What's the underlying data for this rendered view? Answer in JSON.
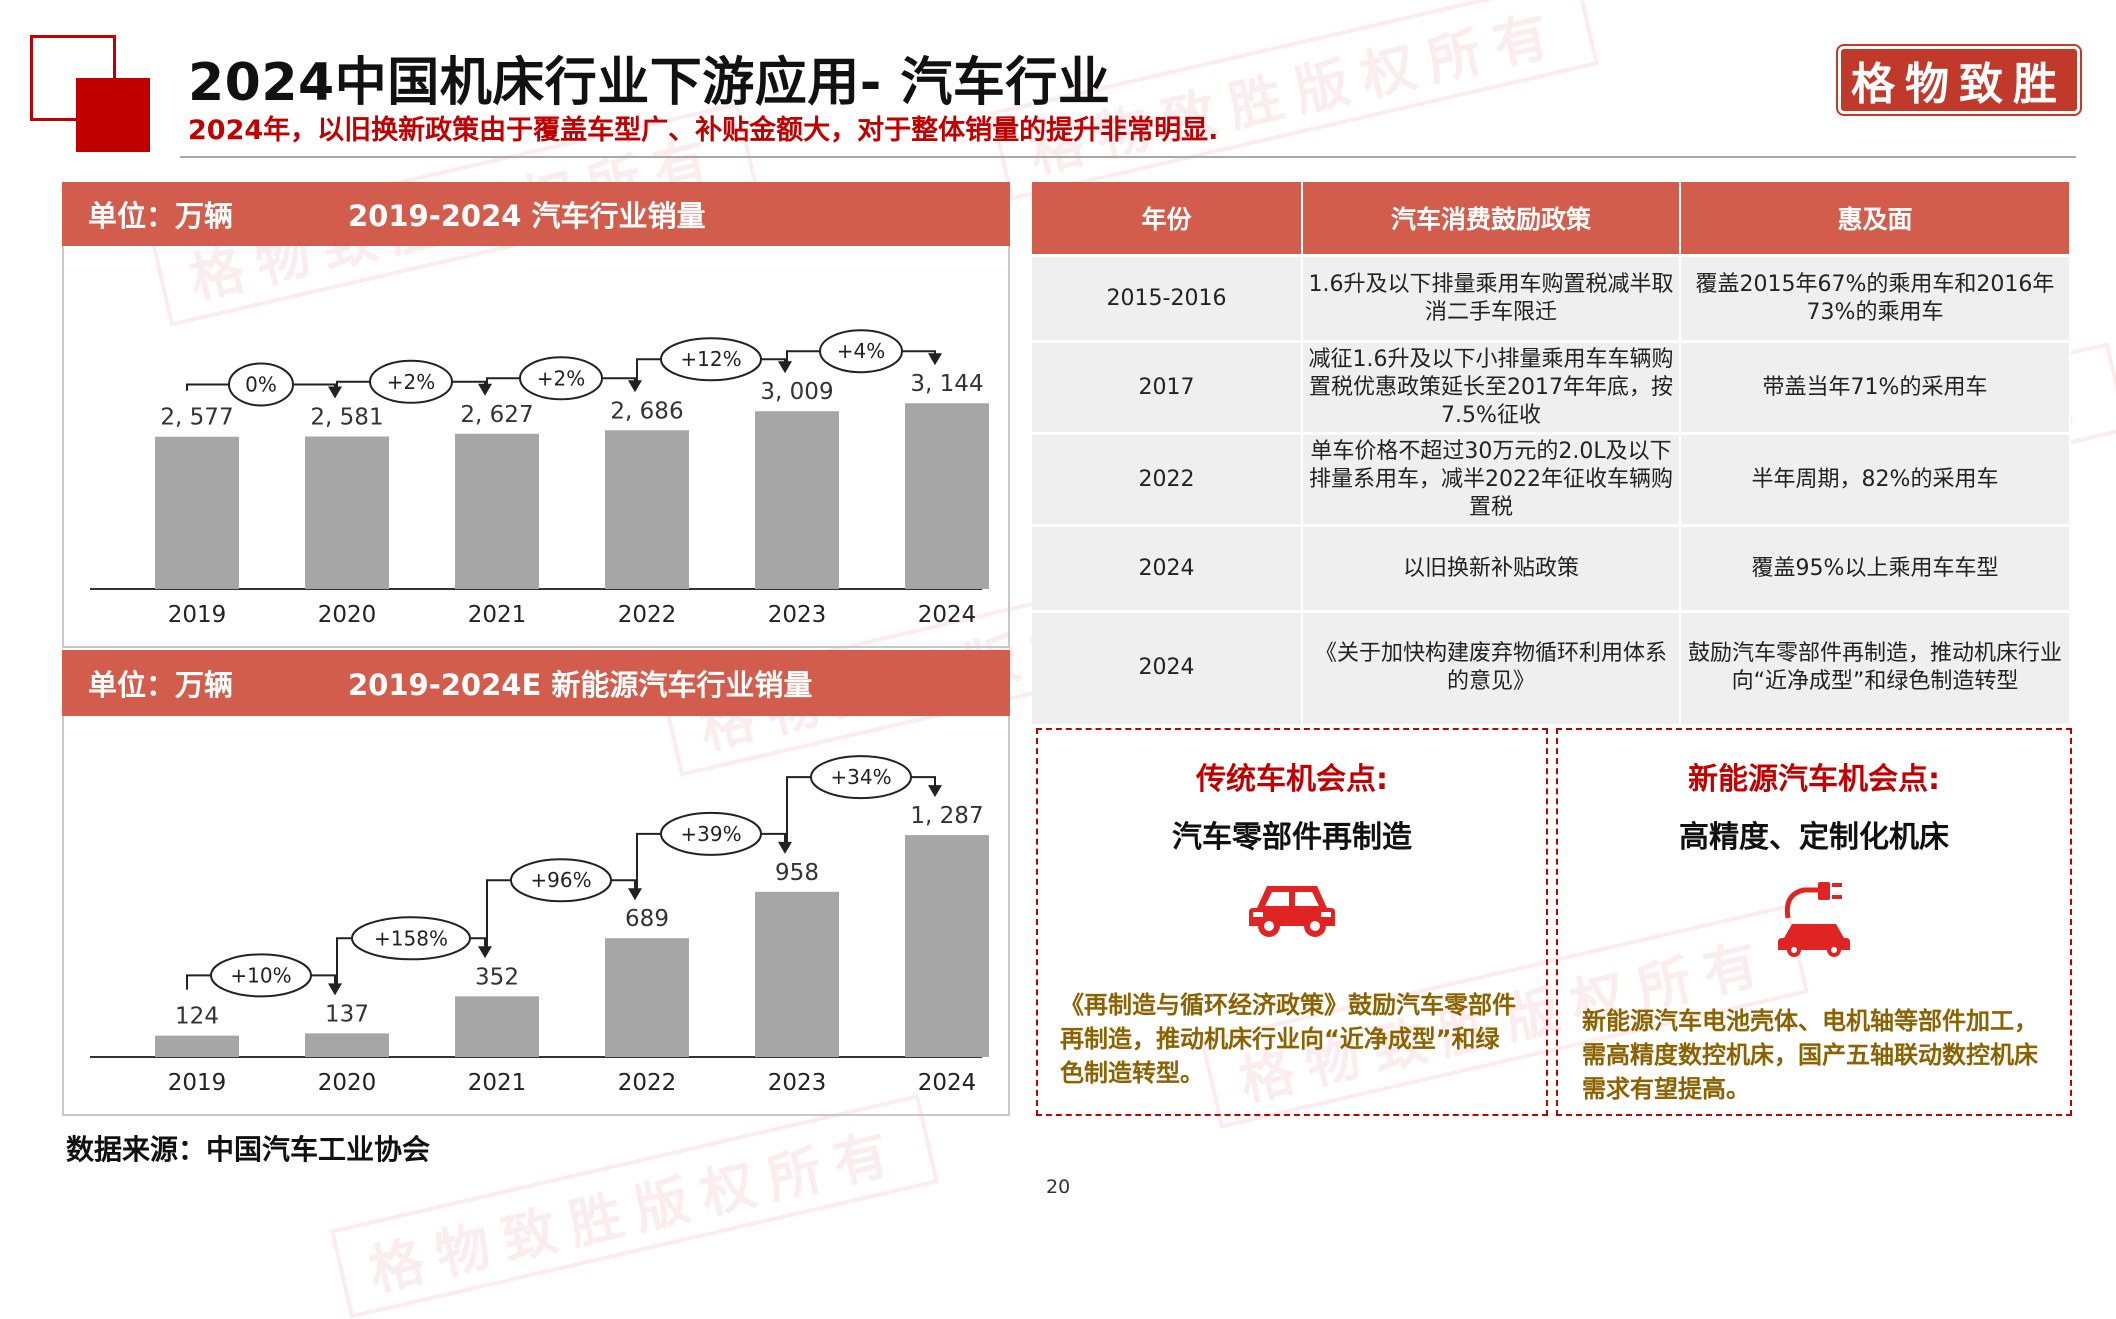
{
  "header": {
    "title": "2024中国机床行业下游应用- 汽车行业",
    "subtitle": "2024年，以旧换新政策由于覆盖车型广、补贴金额大，对于整体销量的提升非常明显.",
    "brand": "格物致胜"
  },
  "watermark": "格物致胜版权所有",
  "colors": {
    "accent": "#c00000",
    "header_bg": "#d35d4d",
    "bar": "#a6a6a6"
  },
  "chart1": {
    "unit": "单位：万辆",
    "title": "2019-2024   汽车行业销量"
  },
  "chart2": {
    "unit": "单位：万辆",
    "title": "2019-2024E  新能源汽车行业销量"
  },
  "chart_data": [
    {
      "type": "bar",
      "title": "2019-2024   汽车行业销量",
      "categories": [
        "2019",
        "2020",
        "2021",
        "2022",
        "2023",
        "2024"
      ],
      "values": [
        2577,
        2581,
        2627,
        2686,
        3009,
        3144
      ],
      "value_labels": [
        "2, 577",
        "2, 581",
        "2, 627",
        "2, 686",
        "3, 009",
        "3, 144"
      ],
      "growth_labels": [
        "0%",
        "+2%",
        "+2%",
        "+12%",
        "+4%"
      ],
      "unit": "万辆",
      "ylim": [
        0,
        3300
      ]
    },
    {
      "type": "bar",
      "title": "2019-2024E  新能源汽车行业销量",
      "categories": [
        "2019",
        "2020",
        "2021",
        "2022",
        "2023",
        "2024"
      ],
      "values": [
        124,
        137,
        352,
        689,
        958,
        1287
      ],
      "value_labels": [
        "124",
        "137",
        "352",
        "689",
        "958",
        "1, 287"
      ],
      "growth_labels": [
        "+10%",
        "+158%",
        "+96%",
        "+39%",
        "+34%"
      ],
      "unit": "万辆",
      "ylim": [
        0,
        1450
      ]
    }
  ],
  "table": {
    "headers": [
      "年份",
      "汽车消费鼓励政策",
      "惠及面"
    ],
    "rows": [
      [
        "2015-2016",
        "1.6升及以下排量乘用车购置税减半取消二手车限迁",
        "覆盖2015年67%的乘用车和2016年73%的乘用车"
      ],
      [
        "2017",
        "减征1.6升及以下小排量乘用车车辆购置税优惠政策延长至2017年年底，按7.5%征收",
        "带盖当年71%的采用车"
      ],
      [
        "2022",
        "单车价格不超过30万元的2.0L及以下排量系用车，减半2022年征收车辆购置税",
        "半年周期，82%的采用车"
      ],
      [
        "2024",
        "以旧换新补贴政策",
        "覆盖95%以上乘用车车型"
      ],
      [
        "2024",
        "《关于加快构建废弃物循环利用体系的意见》",
        "鼓励汽车零部件再制造，推动机床行业向“近净成型”和绿色制造转型"
      ]
    ]
  },
  "opportunities": [
    {
      "title": "传统车机会点:",
      "subtitle": "汽车零部件再制造",
      "icon": "car-icon",
      "desc": "《再制造与循环经济政策》鼓励汽车零部件再制造，推动机床行业向“近净成型”和绿色制造转型。"
    },
    {
      "title": "新能源汽车机会点:",
      "subtitle": "高精度、定制化机床",
      "icon": "ev-charging-car-icon",
      "desc": "新能源汽车电池壳体、电机轴等部件加工，需高精度数控机床，国产五轴联动数控机床需求有望提高。"
    }
  ],
  "source": "数据来源：中国汽车工业协会",
  "page_number": "20"
}
